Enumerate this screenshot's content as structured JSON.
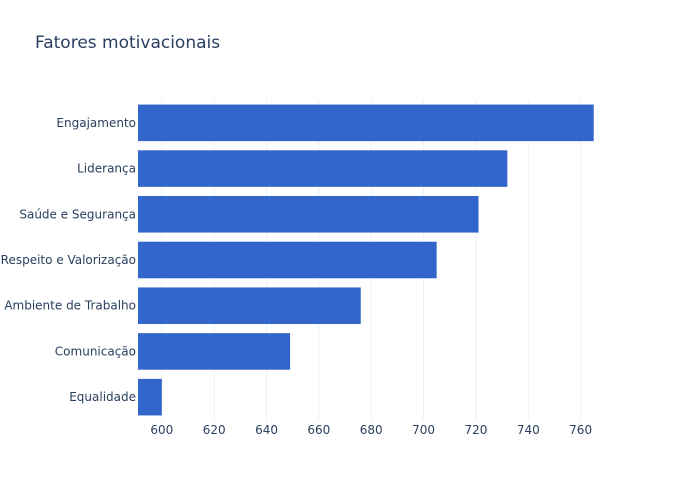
{
  "chart_data": {
    "type": "bar",
    "orientation": "horizontal",
    "title": "Fatores motivacionais",
    "xlabel": "",
    "ylabel": "",
    "categories": [
      "Engajamento",
      "Liderança",
      "Saúde e Segurança",
      "Respeito e Valorização",
      "Ambiente de Trabalho",
      "Comunicação",
      "Equalidade"
    ],
    "values": [
      765,
      732,
      721,
      705,
      676,
      649,
      600
    ],
    "xlim": [
      590.9,
      767.4
    ],
    "xticks": [
      600,
      620,
      640,
      660,
      680,
      700,
      720,
      740,
      760
    ],
    "grid": true,
    "colors": {
      "bar": "#3366cc",
      "text": "#2a3f5f",
      "grid": "#ebf0f8"
    }
  }
}
